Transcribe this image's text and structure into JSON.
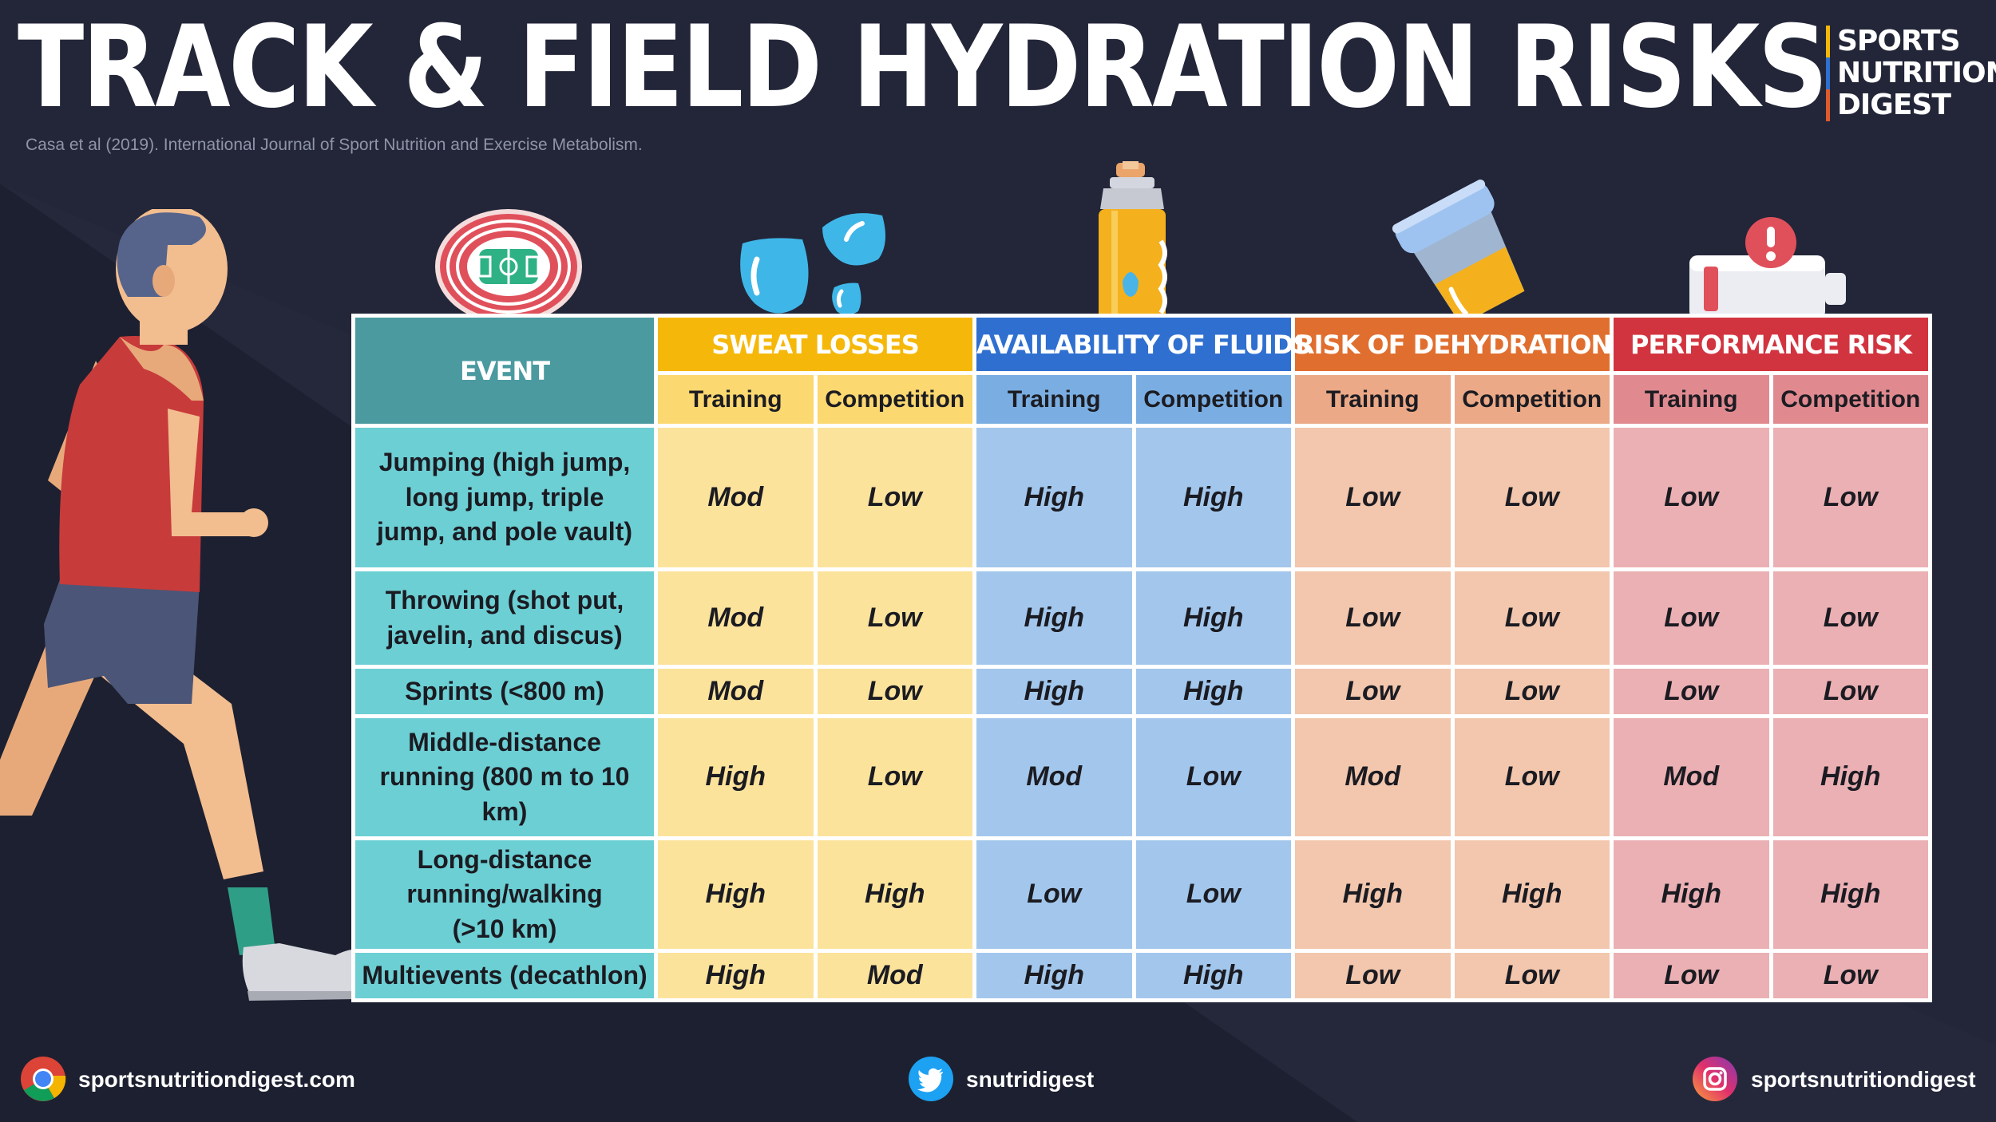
{
  "title": "TRACK & FIELD HYDRATION RISKS",
  "citation": "Casa et al (2019). International Journal of Sport Nutrition and Exercise Metabolism.",
  "brand": {
    "lines": [
      "SPORTS",
      "NUTRITION",
      "DIGEST"
    ],
    "bar_colors": [
      "#f5b80a",
      "#2f6fd0",
      "#e05a2c"
    ]
  },
  "table": {
    "event_header": "EVENT",
    "groups": [
      {
        "label": "SWEAT LOSSES",
        "header_color": "#f5b80a",
        "sub_color": "#fbd870",
        "cell_color": "#fce39c"
      },
      {
        "label": "AVAILABILITY OF FLUIDS",
        "header_color": "#2f6fd0",
        "sub_color": "#7aaee2",
        "cell_color": "#a3c7ec"
      },
      {
        "label": "RISK OF DEHYDRATION",
        "header_color": "#e06f2f",
        "sub_color": "#eba987",
        "cell_color": "#f2c7ad"
      },
      {
        "label": "PERFORMANCE RISK",
        "header_color": "#d2343f",
        "sub_color": "#e08a90",
        "cell_color": "#ebb0b3"
      }
    ],
    "sub_labels": [
      "Training",
      "Competition"
    ],
    "rows": [
      {
        "event": "Jumping (high jump, long jump, triple jump, and pole vault)",
        "values": [
          "Mod",
          "Low",
          "High",
          "High",
          "Low",
          "Low",
          "Low",
          "Low"
        ]
      },
      {
        "event": "Throwing (shot put, javelin, and discus)",
        "values": [
          "Mod",
          "Low",
          "High",
          "High",
          "Low",
          "Low",
          "Low",
          "Low"
        ]
      },
      {
        "event": "Sprints (<800 m)",
        "values": [
          "Mod",
          "Low",
          "High",
          "High",
          "Low",
          "Low",
          "Low",
          "Low"
        ]
      },
      {
        "event": "Middle-distance running (800 m to 10 km)",
        "values": [
          "High",
          "Low",
          "Mod",
          "Low",
          "Mod",
          "Low",
          "Mod",
          "High"
        ]
      },
      {
        "event": "Long-distance running/walking (>10 km)",
        "values": [
          "High",
          "High",
          "Low",
          "Low",
          "High",
          "High",
          "High",
          "High"
        ]
      },
      {
        "event": "Multievents (decathlon)",
        "values": [
          "High",
          "Mod",
          "High",
          "High",
          "Low",
          "Low",
          "Low",
          "Low"
        ]
      }
    ]
  },
  "footer": {
    "website": "sportsnutritiondigest.com",
    "twitter": "snutridigest",
    "instagram": "sportsnutritiondigest"
  }
}
